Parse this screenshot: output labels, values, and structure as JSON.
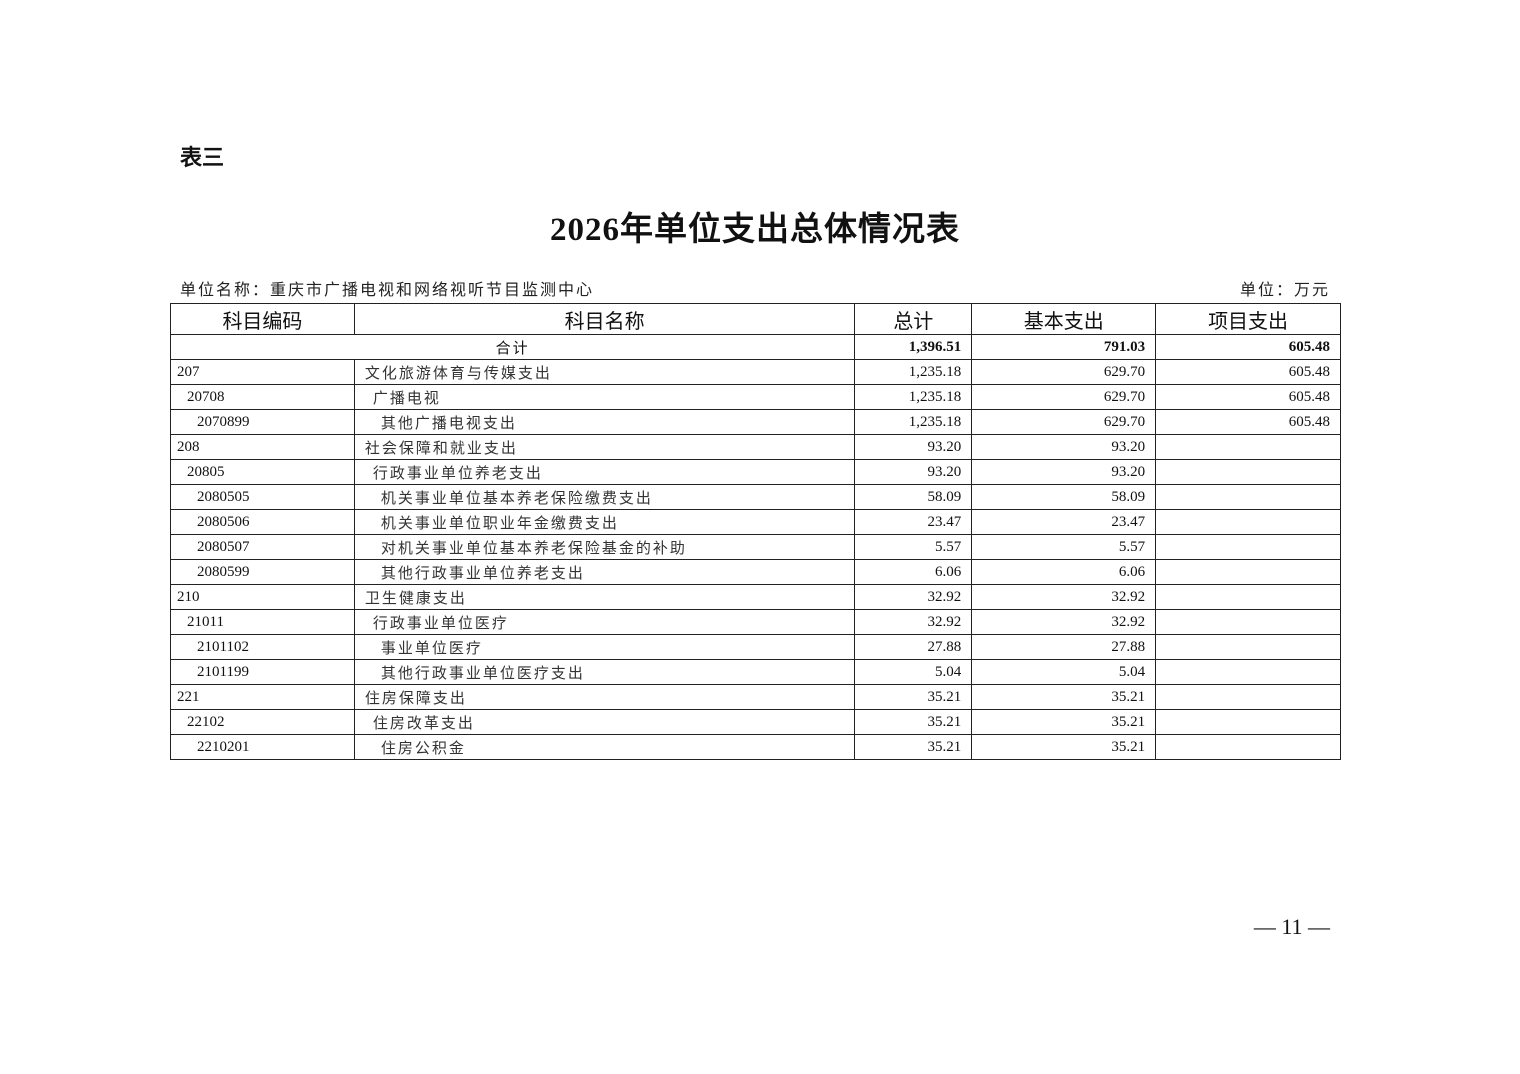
{
  "table_label": "表三",
  "title": "2026年单位支出总体情况表",
  "unit_name": "单位名称：重庆市广播电视和网络视听节目监测中心",
  "unit": "单位：万元",
  "headers": [
    "科目编码",
    "科目名称",
    "总计",
    "基本支出",
    "项目支出"
  ],
  "total": {
    "label": "合计",
    "total": "1,396.51",
    "basic": "791.03",
    "project": "605.48"
  },
  "rows": [
    {
      "code": "207",
      "name": "文化旅游体育与传媒支出",
      "level": 0,
      "total": "1,235.18",
      "basic": "629.70",
      "project": "605.48"
    },
    {
      "code": "20708",
      "name": "广播电视",
      "level": 1,
      "total": "1,235.18",
      "basic": "629.70",
      "project": "605.48"
    },
    {
      "code": "2070899",
      "name": "其他广播电视支出",
      "level": 2,
      "total": "1,235.18",
      "basic": "629.70",
      "project": "605.48"
    },
    {
      "code": "208",
      "name": "社会保障和就业支出",
      "level": 0,
      "total": "93.20",
      "basic": "93.20",
      "project": ""
    },
    {
      "code": "20805",
      "name": "行政事业单位养老支出",
      "level": 1,
      "total": "93.20",
      "basic": "93.20",
      "project": ""
    },
    {
      "code": "2080505",
      "name": "机关事业单位基本养老保险缴费支出",
      "level": 2,
      "total": "58.09",
      "basic": "58.09",
      "project": ""
    },
    {
      "code": "2080506",
      "name": "机关事业单位职业年金缴费支出",
      "level": 2,
      "total": "23.47",
      "basic": "23.47",
      "project": ""
    },
    {
      "code": "2080507",
      "name": "对机关事业单位基本养老保险基金的补助",
      "level": 2,
      "total": "5.57",
      "basic": "5.57",
      "project": ""
    },
    {
      "code": "2080599",
      "name": "其他行政事业单位养老支出",
      "level": 2,
      "total": "6.06",
      "basic": "6.06",
      "project": ""
    },
    {
      "code": "210",
      "name": "卫生健康支出",
      "level": 0,
      "total": "32.92",
      "basic": "32.92",
      "project": ""
    },
    {
      "code": "21011",
      "name": "行政事业单位医疗",
      "level": 1,
      "total": "32.92",
      "basic": "32.92",
      "project": ""
    },
    {
      "code": "2101102",
      "name": "事业单位医疗",
      "level": 2,
      "total": "27.88",
      "basic": "27.88",
      "project": ""
    },
    {
      "code": "2101199",
      "name": "其他行政事业单位医疗支出",
      "level": 2,
      "total": "5.04",
      "basic": "5.04",
      "project": ""
    },
    {
      "code": "221",
      "name": "住房保障支出",
      "level": 0,
      "total": "35.21",
      "basic": "35.21",
      "project": ""
    },
    {
      "code": "22102",
      "name": "住房改革支出",
      "level": 1,
      "total": "35.21",
      "basic": "35.21",
      "project": ""
    },
    {
      "code": "2210201",
      "name": "住房公积金",
      "level": 2,
      "total": "35.21",
      "basic": "35.21",
      "project": ""
    }
  ],
  "page_number": "— 11 —"
}
